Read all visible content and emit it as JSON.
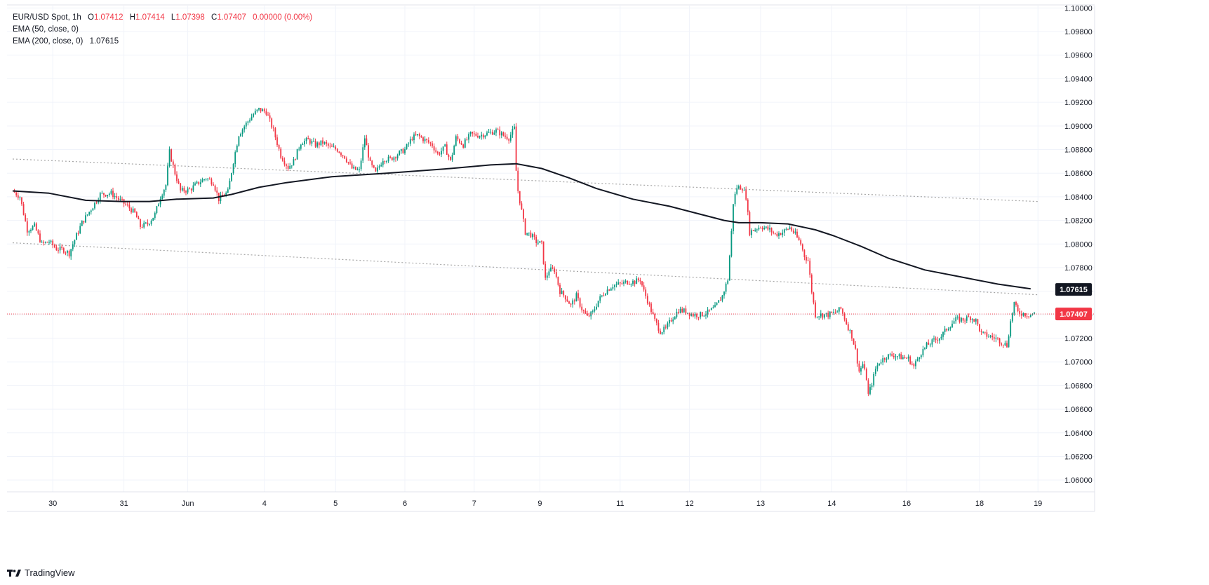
{
  "header": {
    "symbol": "EUR/USD Spot, 1h",
    "open_label": "O",
    "open": "1.07412",
    "high_label": "H",
    "high": "1.07414",
    "low_label": "L",
    "low": "1.07398",
    "close_label": "C",
    "close": "1.07407",
    "change": "0.00000 (0.00%)",
    "ema50_label": "EMA (50, close, 0)",
    "ema200_label": "EMA (200, close, 0)",
    "ema200_value": "1.07615"
  },
  "footer": {
    "brand": "TradingView"
  },
  "colors": {
    "up": "#089981",
    "down": "#f23645",
    "ema200": "#131722",
    "trendline": "#a6a6a6",
    "grid": "#f0f3fa",
    "price_badge": "#f23645",
    "ema_badge": "#131722"
  },
  "chart_data": {
    "type": "candlestick",
    "title": "EUR/USD Spot, 1h",
    "ylim": [
      1.059,
      1.1002
    ],
    "y_ticks": [
      "1.06000",
      "1.06200",
      "1.06400",
      "1.06600",
      "1.06800",
      "1.07000",
      "1.07200",
      "1.07400",
      "1.07600",
      "1.07800",
      "1.08000",
      "1.08200",
      "1.08400",
      "1.08600",
      "1.08800",
      "1.09000",
      "1.09200",
      "1.09400",
      "1.09600",
      "1.09800",
      "1.10000"
    ],
    "x_ticks": [
      "30",
      "31",
      "Jun",
      "4",
      "5",
      "6",
      "7",
      "9",
      "11",
      "12",
      "13",
      "14",
      "16",
      "18",
      "19"
    ],
    "grid": true,
    "last_price": "1.07407",
    "ema200_last": "1.07615",
    "path": [
      [
        0,
        1.0845
      ],
      [
        4,
        1.084
      ],
      [
        8,
        1.0812
      ],
      [
        12,
        1.0815
      ],
      [
        16,
        1.08
      ],
      [
        20,
        1.0802
      ],
      [
        24,
        1.0796
      ],
      [
        28,
        1.0795
      ],
      [
        31,
        1.0792
      ],
      [
        33,
        1.08
      ],
      [
        38,
        1.0818
      ],
      [
        44,
        1.0832
      ],
      [
        48,
        1.0842
      ],
      [
        54,
        1.0843
      ],
      [
        58,
        1.0838
      ],
      [
        63,
        1.0832
      ],
      [
        67,
        1.0826
      ],
      [
        70,
        1.0815
      ],
      [
        74,
        1.0817
      ],
      [
        78,
        1.0825
      ],
      [
        81,
        1.084
      ],
      [
        84,
        1.085
      ],
      [
        86,
        1.0878
      ],
      [
        89,
        1.086
      ],
      [
        92,
        1.0845
      ],
      [
        97,
        1.0846
      ],
      [
        102,
        1.0852
      ],
      [
        106,
        1.0856
      ],
      [
        110,
        1.0852
      ],
      [
        113,
        1.0838
      ],
      [
        118,
        1.0844
      ],
      [
        121,
        1.087
      ],
      [
        124,
        1.0893
      ],
      [
        128,
        1.0902
      ],
      [
        132,
        1.091
      ],
      [
        135,
        1.0914
      ],
      [
        139,
        1.0912
      ],
      [
        143,
        1.0896
      ],
      [
        147,
        1.0875
      ],
      [
        151,
        1.0865
      ],
      [
        154,
        1.087
      ],
      [
        158,
        1.0886
      ],
      [
        162,
        1.0888
      ],
      [
        166,
        1.0884
      ],
      [
        170,
        1.0886
      ],
      [
        174,
        1.0882
      ],
      [
        178,
        1.088
      ],
      [
        182,
        1.0874
      ],
      [
        186,
        1.0864
      ],
      [
        190,
        1.0862
      ],
      [
        193,
        1.089
      ],
      [
        196,
        1.0868
      ],
      [
        199,
        1.086
      ],
      [
        203,
        1.0872
      ],
      [
        207,
        1.0872
      ],
      [
        211,
        1.0876
      ],
      [
        215,
        1.088
      ],
      [
        219,
        1.089
      ],
      [
        222,
        1.0892
      ],
      [
        226,
        1.0888
      ],
      [
        230,
        1.0884
      ],
      [
        233,
        1.0876
      ],
      [
        237,
        1.0882
      ],
      [
        240,
        1.087
      ],
      [
        243,
        1.089
      ],
      [
        247,
        1.0884
      ],
      [
        251,
        1.0893
      ],
      [
        256,
        1.0892
      ],
      [
        261,
        1.0894
      ],
      [
        265,
        1.0896
      ],
      [
        269,
        1.0892
      ],
      [
        272,
        1.089
      ],
      [
        275,
        1.0898
      ],
      [
        276,
        1.0862
      ],
      [
        277,
        1.0845
      ],
      [
        279,
        1.0828
      ],
      [
        281,
        1.081
      ],
      [
        284,
        1.0808
      ],
      [
        287,
        1.0802
      ],
      [
        290,
        1.08
      ],
      [
        292,
        1.077
      ],
      [
        294,
        1.0778
      ],
      [
        297,
        1.0778
      ],
      [
        300,
        1.076
      ],
      [
        303,
        1.0755
      ],
      [
        306,
        1.0748
      ],
      [
        309,
        1.0756
      ],
      [
        312,
        1.0745
      ],
      [
        315,
        1.0738
      ],
      [
        318,
        1.0742
      ],
      [
        321,
        1.0752
      ],
      [
        325,
        1.076
      ],
      [
        329,
        1.0765
      ],
      [
        333,
        1.0766
      ],
      [
        337,
        1.0768
      ],
      [
        341,
        1.0768
      ],
      [
        344,
        1.077
      ],
      [
        346,
        1.076
      ],
      [
        349,
        1.0748
      ],
      [
        352,
        1.0735
      ],
      [
        355,
        1.0726
      ],
      [
        358,
        1.0728
      ],
      [
        361,
        1.0736
      ],
      [
        365,
        1.0744
      ],
      [
        369,
        1.0743
      ],
      [
        373,
        1.074
      ],
      [
        377,
        1.074
      ],
      [
        381,
        1.0742
      ],
      [
        385,
        1.0746
      ],
      [
        389,
        1.0756
      ],
      [
        392,
        1.077
      ],
      [
        394,
        1.081
      ],
      [
        395,
        1.0835
      ],
      [
        397,
        1.0848
      ],
      [
        400,
        1.0848
      ],
      [
        402,
        1.084
      ],
      [
        404,
        1.081
      ],
      [
        406,
        1.0812
      ],
      [
        410,
        1.0815
      ],
      [
        415,
        1.0812
      ],
      [
        418,
        1.0808
      ],
      [
        422,
        1.081
      ],
      [
        426,
        1.0814
      ],
      [
        429,
        1.0808
      ],
      [
        432,
        1.08
      ],
      [
        434,
        1.079
      ],
      [
        436,
        1.0786
      ],
      [
        438,
        1.076
      ],
      [
        440,
        1.074
      ],
      [
        443,
        1.074
      ],
      [
        447,
        1.074
      ],
      [
        451,
        1.0742
      ],
      [
        454,
        1.0745
      ],
      [
        457,
        1.0733
      ],
      [
        460,
        1.0722
      ],
      [
        462,
        1.071
      ],
      [
        464,
        1.0692
      ],
      [
        466,
        1.0698
      ],
      [
        468,
        1.0686
      ],
      [
        469,
        1.0672
      ],
      [
        471,
        1.0682
      ],
      [
        473,
        1.0694
      ],
      [
        475,
        1.07
      ],
      [
        479,
        1.0705
      ],
      [
        483,
        1.0706
      ],
      [
        487,
        1.0704
      ],
      [
        491,
        1.0703
      ],
      [
        494,
        1.0696
      ],
      [
        497,
        1.0706
      ],
      [
        501,
        1.0714
      ],
      [
        505,
        1.0718
      ],
      [
        509,
        1.0722
      ],
      [
        513,
        1.073
      ],
      [
        517,
        1.0736
      ],
      [
        521,
        1.0736
      ],
      [
        525,
        1.0738
      ],
      [
        528,
        1.0735
      ],
      [
        531,
        1.0724
      ],
      [
        535,
        1.0722
      ],
      [
        539,
        1.072
      ],
      [
        543,
        1.0716
      ],
      [
        545,
        1.0714
      ],
      [
        547,
        1.0734
      ],
      [
        549,
        1.075
      ],
      [
        551,
        1.0742
      ],
      [
        554,
        1.0741
      ],
      [
        557,
        1.074
      ],
      [
        560,
        1.0741
      ]
    ],
    "ema200": [
      [
        0,
        1.0845
      ],
      [
        20,
        1.0843
      ],
      [
        40,
        1.0837
      ],
      [
        60,
        1.0836
      ],
      [
        75,
        1.0836
      ],
      [
        90,
        1.0838
      ],
      [
        110,
        1.0839
      ],
      [
        120,
        1.0842
      ],
      [
        135,
        1.0848
      ],
      [
        150,
        1.0852
      ],
      [
        175,
        1.0857
      ],
      [
        205,
        1.086
      ],
      [
        240,
        1.0864
      ],
      [
        262,
        1.0867
      ],
      [
        276,
        1.0868
      ],
      [
        290,
        1.0864
      ],
      [
        305,
        1.0856
      ],
      [
        320,
        1.0847
      ],
      [
        340,
        1.0838
      ],
      [
        360,
        1.0832
      ],
      [
        375,
        1.0826
      ],
      [
        390,
        1.082
      ],
      [
        398,
        1.0818
      ],
      [
        410,
        1.0818
      ],
      [
        425,
        1.0817
      ],
      [
        440,
        1.0812
      ],
      [
        450,
        1.0807
      ],
      [
        465,
        1.0798
      ],
      [
        480,
        1.0788
      ],
      [
        500,
        1.0778
      ],
      [
        520,
        1.0772
      ],
      [
        540,
        1.0766
      ],
      [
        558,
        1.0762
      ]
    ],
    "trendlines": [
      {
        "points": [
          [
            0,
            1.0872
          ],
          [
            562,
            1.0836
          ]
        ]
      },
      {
        "points": [
          [
            0,
            1.0801
          ],
          [
            562,
            1.0757
          ]
        ]
      }
    ]
  }
}
